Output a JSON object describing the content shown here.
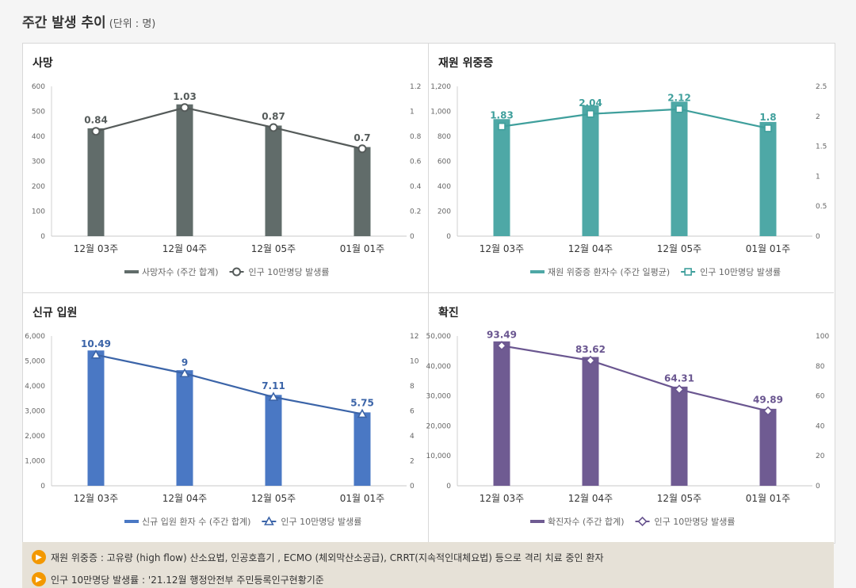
{
  "page": {
    "title": "주간 발생 추이",
    "unit": "(단위 : 명)"
  },
  "chart_data": [
    {
      "type": "bar",
      "title": "사망",
      "categories": [
        "12월 03주",
        "12월 04주",
        "12월 05주",
        "01월 01주"
      ],
      "series": [
        {
          "name": "사망자수 (주간 합계)",
          "values": [
            432,
            528,
            443,
            357
          ]
        },
        {
          "name": "인구 10만명당 발생률",
          "values": [
            0.84,
            1.03,
            0.87,
            0.7
          ],
          "axis": "right"
        }
      ],
      "yticks": [
        "0",
        "100",
        "200",
        "300",
        "400",
        "500",
        "600"
      ],
      "ylim": [
        0,
        600
      ],
      "y2ticks": [
        "0",
        "0.2",
        "0.4",
        "0.6",
        "0.8",
        "1",
        "1.2"
      ],
      "y2lim": [
        0,
        1.2
      ],
      "rate_labels": [
        "0.84",
        "1.03",
        "0.87",
        "0.7"
      ],
      "bar_color": "#616c6a",
      "line_color": "#555b5a",
      "marker": "circle"
    },
    {
      "type": "bar",
      "title": "재원 위중증",
      "categories": [
        "12월 03주",
        "12월 04주",
        "12월 05주",
        "01월 01주"
      ],
      "series": [
        {
          "name": "재원 위중증 환자수 (주간 일평균)",
          "values": [
            938,
            1048,
            1078,
            915
          ]
        },
        {
          "name": "인구 10만명당 발생률",
          "values": [
            1.83,
            2.04,
            2.12,
            1.8
          ],
          "axis": "right"
        }
      ],
      "yticks": [
        "0",
        "200",
        "400",
        "600",
        "800",
        "1,000",
        "1,200"
      ],
      "ylim": [
        0,
        1200
      ],
      "y2ticks": [
        "0",
        "0.5",
        "1",
        "1.5",
        "2",
        "2.5"
      ],
      "y2lim": [
        0,
        2.5
      ],
      "rate_labels": [
        "1.83",
        "2.04",
        "2.12",
        "1.8"
      ],
      "bar_color": "#4ea8a6",
      "line_color": "#3f9f9c",
      "marker": "square"
    },
    {
      "type": "bar",
      "title": "신규 입원",
      "categories": [
        "12월 03주",
        "12월 04주",
        "12월 05주",
        "01월 01주"
      ],
      "series": [
        {
          "name": "신규 입원 환자 수 (주간 합계)",
          "values": [
            5420,
            4630,
            3640,
            2940
          ]
        },
        {
          "name": "인구 10만명당 발생률",
          "values": [
            10.49,
            9,
            7.11,
            5.75
          ],
          "axis": "right"
        }
      ],
      "yticks": [
        "0",
        "1,000",
        "2,000",
        "3,000",
        "4,000",
        "5,000",
        "6,000"
      ],
      "ylim": [
        0,
        6000
      ],
      "y2ticks": [
        "0",
        "2",
        "4",
        "6",
        "8",
        "10",
        "12"
      ],
      "y2lim": [
        0,
        12
      ],
      "rate_labels": [
        "10.49",
        "9",
        "7.11",
        "5.75"
      ],
      "bar_color": "#4a78c4",
      "line_color": "#3b64a8",
      "marker": "triangle"
    },
    {
      "type": "bar",
      "title": "확진",
      "categories": [
        "12월 03주",
        "12월 04주",
        "12월 05주",
        "01월 01주"
      ],
      "series": [
        {
          "name": "확진자수 (주간 합계)",
          "values": [
            48200,
            43000,
            33100,
            25700
          ]
        },
        {
          "name": "인구 10만명당 발생률",
          "values": [
            93.49,
            83.62,
            64.31,
            49.89
          ],
          "axis": "right"
        }
      ],
      "yticks": [
        "0",
        "10,000",
        "20,000",
        "30,000",
        "40,000",
        "50,000"
      ],
      "ylim": [
        0,
        50000
      ],
      "y2ticks": [
        "0",
        "20",
        "40",
        "60",
        "80",
        "100"
      ],
      "y2lim": [
        0,
        100
      ],
      "rate_labels": [
        "93.49",
        "83.62",
        "64.31",
        "49.89"
      ],
      "bar_color": "#6f5b92",
      "line_color": "#6a5690",
      "marker": "diamond"
    }
  ],
  "notes": [
    {
      "icon": "speaker-icon",
      "text": "재원 위중증 : 고유량 (high flow) 산소요법, 인공호흡기 , ECMO (체외막산소공급), CRRT(지속적인대체요법) 등으로 격리 치료 중인 환자"
    },
    {
      "icon": "speaker-icon",
      "text": "인구 10만명당 발생률 : '21.12월 행정안전부 주민등록인구현황기준"
    }
  ]
}
